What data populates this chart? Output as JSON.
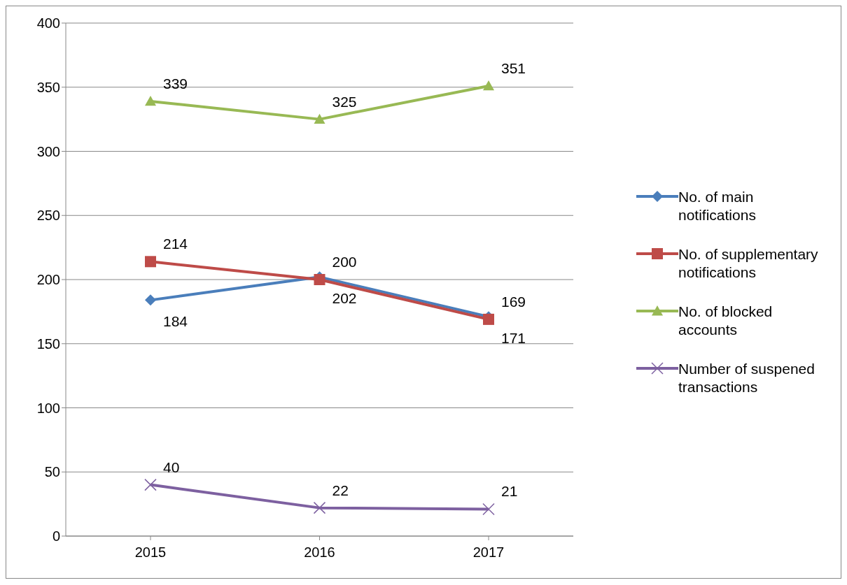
{
  "chart_data": {
    "type": "line",
    "categories": [
      "2015",
      "2016",
      "2017"
    ],
    "series": [
      {
        "name": "No. of main notifications",
        "color": "#4a7ebb",
        "marker": "diamond",
        "values": [
          184,
          202,
          171
        ]
      },
      {
        "name": "No. of supplementary notifications",
        "color": "#be4b48",
        "marker": "square",
        "values": [
          214,
          200,
          169
        ]
      },
      {
        "name": "No. of blocked accounts",
        "color": "#98b954",
        "marker": "triangle",
        "values": [
          339,
          325,
          351
        ]
      },
      {
        "name": "Number of suspened transactions",
        "color": "#7d60a0",
        "marker": "cross",
        "values": [
          40,
          22,
          21
        ]
      }
    ],
    "ylim": [
      0,
      400
    ],
    "yticks": [
      0,
      50,
      100,
      150,
      200,
      250,
      300,
      350,
      400
    ],
    "grid": "y",
    "legend": "right",
    "data_labels": true,
    "line_style": "solid"
  }
}
